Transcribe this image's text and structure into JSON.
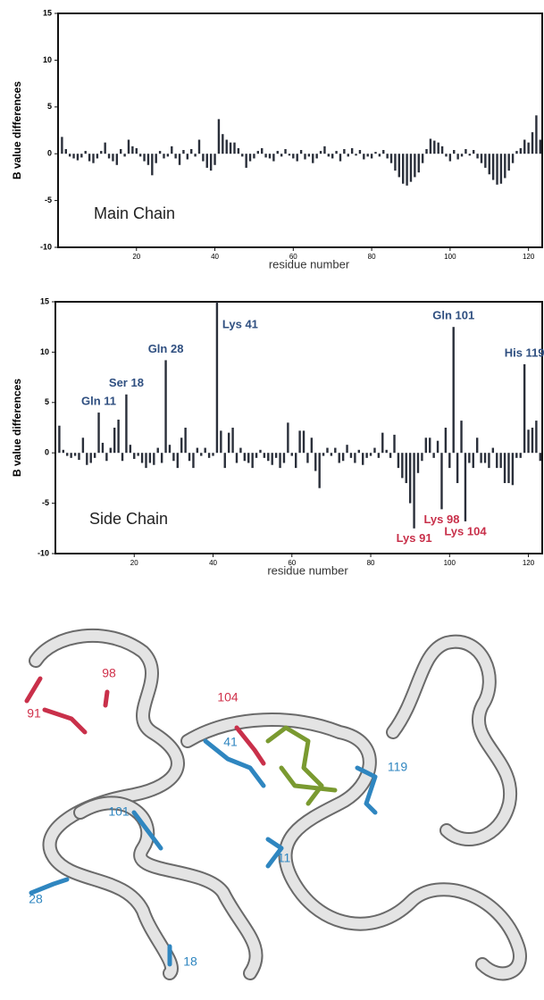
{
  "chart_data": [
    {
      "type": "bar",
      "panel_label": "Main Chain",
      "x_label": "residue number",
      "y_label": "B value differences",
      "color": "#2a2f3a",
      "xlim": [
        0,
        123.5
      ],
      "xticks": [
        20,
        40,
        60,
        80,
        100,
        120
      ],
      "ylim": [
        -10,
        15
      ],
      "yticks": [
        -10,
        -5,
        0,
        5,
        10,
        15
      ],
      "x": [
        1,
        2,
        3,
        4,
        5,
        6,
        7,
        8,
        9,
        10,
        11,
        12,
        13,
        14,
        15,
        16,
        17,
        18,
        19,
        20,
        21,
        22,
        23,
        24,
        25,
        26,
        27,
        28,
        29,
        30,
        31,
        32,
        33,
        34,
        35,
        36,
        37,
        38,
        39,
        40,
        41,
        42,
        43,
        44,
        45,
        46,
        47,
        48,
        49,
        50,
        51,
        52,
        53,
        54,
        55,
        56,
        57,
        58,
        59,
        60,
        61,
        62,
        63,
        64,
        65,
        66,
        67,
        68,
        69,
        70,
        71,
        72,
        73,
        74,
        75,
        76,
        77,
        78,
        79,
        80,
        81,
        82,
        83,
        84,
        85,
        86,
        87,
        88,
        89,
        90,
        91,
        92,
        93,
        94,
        95,
        96,
        97,
        98,
        99,
        100,
        101,
        102,
        103,
        104,
        105,
        106,
        107,
        108,
        109,
        110,
        111,
        112,
        113,
        114,
        115,
        116,
        117,
        118,
        119,
        120,
        121,
        122,
        123
      ],
      "values": [
        1.8,
        0.5,
        -0.3,
        -0.5,
        -0.7,
        -0.4,
        0.3,
        -0.8,
        -1.0,
        -0.5,
        0.3,
        1.2,
        -0.5,
        -0.8,
        -1.2,
        0.5,
        -0.3,
        1.5,
        0.8,
        0.6,
        -0.3,
        -0.8,
        -1.2,
        -2.3,
        -1.0,
        0.3,
        -0.5,
        -0.3,
        0.8,
        -0.5,
        -1.2,
        0.4,
        -0.6,
        0.5,
        -0.3,
        1.5,
        -0.8,
        -1.5,
        -1.8,
        -1.2,
        3.7,
        2.1,
        1.5,
        1.2,
        1.2,
        0.6,
        -0.3,
        -1.5,
        -0.8,
        -0.5,
        0.3,
        0.6,
        -0.4,
        -0.5,
        -0.8,
        0.3,
        -0.3,
        0.5,
        -0.2,
        -0.5,
        -0.8,
        0.4,
        -0.6,
        -0.3,
        -1.0,
        -0.5,
        0.3,
        0.8,
        -0.3,
        -0.5,
        0.3,
        -0.8,
        0.5,
        -0.3,
        0.6,
        -0.2,
        0.4,
        -0.6,
        -0.3,
        -0.5,
        0.2,
        -0.3,
        0.4,
        -0.5,
        -1.0,
        -1.8,
        -2.5,
        -3.2,
        -3.4,
        -3.0,
        -2.5,
        -2.0,
        -1.0,
        0.5,
        1.6,
        1.4,
        1.2,
        0.8,
        -0.3,
        -0.8,
        0.4,
        -0.6,
        -0.3,
        0.5,
        -0.2,
        0.4,
        -0.5,
        -1.0,
        -1.5,
        -2.2,
        -2.8,
        -3.3,
        -3.2,
        -2.6,
        -1.8,
        -1.0,
        0.3,
        0.6,
        1.5,
        1.2,
        2.3,
        4.1,
        1.5
      ]
    },
    {
      "type": "bar",
      "panel_label": "Side Chain",
      "x_label": "residue number",
      "y_label": "B value differences",
      "color": "#2a2f3a",
      "xlim": [
        0,
        123.5
      ],
      "xticks": [
        20,
        40,
        60,
        80,
        100,
        120
      ],
      "ylim": [
        -10,
        15
      ],
      "yticks": [
        -10,
        -5,
        0,
        5,
        10,
        15
      ],
      "x": [
        1,
        2,
        3,
        4,
        5,
        6,
        7,
        8,
        9,
        10,
        11,
        12,
        13,
        14,
        15,
        16,
        17,
        18,
        19,
        20,
        21,
        22,
        23,
        24,
        25,
        26,
        27,
        28,
        29,
        30,
        31,
        32,
        33,
        34,
        35,
        36,
        37,
        38,
        39,
        40,
        41,
        42,
        43,
        44,
        45,
        46,
        47,
        48,
        49,
        50,
        51,
        52,
        53,
        54,
        55,
        56,
        57,
        58,
        59,
        60,
        61,
        62,
        63,
        64,
        65,
        66,
        67,
        68,
        69,
        70,
        71,
        72,
        73,
        74,
        75,
        76,
        77,
        78,
        79,
        80,
        81,
        82,
        83,
        84,
        85,
        86,
        87,
        88,
        89,
        90,
        91,
        92,
        93,
        94,
        95,
        96,
        97,
        98,
        99,
        100,
        101,
        102,
        103,
        104,
        105,
        106,
        107,
        108,
        109,
        110,
        111,
        112,
        113,
        114,
        115,
        116,
        117,
        118,
        119,
        120,
        121,
        122,
        123
      ],
      "values": [
        2.7,
        0.3,
        -0.3,
        -0.5,
        -0.3,
        -0.7,
        1.5,
        -1.2,
        -1.0,
        -0.5,
        4.0,
        1.0,
        -0.8,
        0.5,
        2.5,
        3.3,
        -0.8,
        5.8,
        0.8,
        -0.6,
        -0.3,
        -1.0,
        -1.5,
        -1.0,
        -1.2,
        0.5,
        -1.0,
        9.2,
        0.8,
        -0.8,
        -1.5,
        1.5,
        2.5,
        -0.8,
        -1.5,
        0.5,
        -0.3,
        0.5,
        -0.5,
        -0.3,
        15,
        2.2,
        -1.5,
        2.0,
        2.5,
        -1.0,
        0.5,
        -0.8,
        -1.0,
        -1.5,
        -0.5,
        0.3,
        -0.5,
        -0.8,
        -1.2,
        -0.5,
        -1.5,
        -1.0,
        3.0,
        -0.3,
        -1.5,
        2.2,
        2.2,
        -1.0,
        1.5,
        -1.8,
        -3.5,
        -0.3,
        0.5,
        -0.3,
        0.5,
        -1.0,
        -0.8,
        0.8,
        -0.5,
        -1.0,
        0.3,
        -1.2,
        -0.5,
        -0.3,
        0.5,
        -0.5,
        2.0,
        0.3,
        -0.5,
        1.8,
        -1.5,
        -2.5,
        -3.0,
        -5.0,
        -7.5,
        -2.0,
        -0.8,
        1.5,
        1.5,
        -0.5,
        1.2,
        -5.6,
        2.5,
        -1.5,
        12.5,
        -3.0,
        3.2,
        -6.8,
        -1.0,
        -1.5,
        1.5,
        -1.0,
        -1.0,
        -1.5,
        0.5,
        -1.5,
        -1.5,
        -3.0,
        -3.0,
        -3.2,
        -0.5,
        -0.5,
        8.8,
        2.3,
        2.5,
        3.2,
        -0.8
      ],
      "annotations": [
        {
          "text": "Gln 11",
          "residue": 11,
          "color": "#2f4f80"
        },
        {
          "text": "Ser 18",
          "residue": 18,
          "color": "#2f4f80"
        },
        {
          "text": "Gln 28",
          "residue": 28,
          "color": "#2f4f80"
        },
        {
          "text": "Lys 41",
          "residue": 41,
          "color": "#2f4f80"
        },
        {
          "text": "Gln 101",
          "residue": 101,
          "color": "#2f4f80"
        },
        {
          "text": "His 119",
          "residue": 119,
          "color": "#2f4f80"
        },
        {
          "text": "Lys 91",
          "residue": 91,
          "color": "#c8304a"
        },
        {
          "text": "Lys 98",
          "residue": 98,
          "color": "#c8304a"
        },
        {
          "text": "Lys 104",
          "residue": 104,
          "color": "#c8304a"
        }
      ]
    }
  ],
  "structure": {
    "labels": [
      {
        "text": "98",
        "color": "#d0304a"
      },
      {
        "text": "91",
        "color": "#d0304a"
      },
      {
        "text": "104",
        "color": "#d0304a"
      },
      {
        "text": "41",
        "color": "#2f86c0"
      },
      {
        "text": "119",
        "color": "#2f86c0"
      },
      {
        "text": "101",
        "color": "#2f86c0"
      },
      {
        "text": "11",
        "color": "#2f86c0"
      },
      {
        "text": "28",
        "color": "#2f86c0"
      },
      {
        "text": "18",
        "color": "#2f86c0"
      }
    ]
  }
}
